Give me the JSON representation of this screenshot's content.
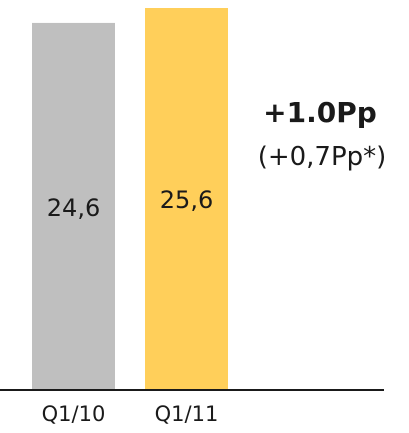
{
  "chart_data": {
    "type": "bar",
    "categories": [
      "Q1/10",
      "Q1/11"
    ],
    "values": [
      24.6,
      25.6
    ],
    "value_labels": [
      "24,6",
      "25,6"
    ],
    "colors": [
      "#bfbfbf",
      "#ffcf5a"
    ],
    "title": "",
    "xlabel": "",
    "ylabel": "",
    "grid": false,
    "annotations": {
      "change": "+1.0Pp",
      "change_adjusted": "(+0,7Pp*)"
    }
  }
}
